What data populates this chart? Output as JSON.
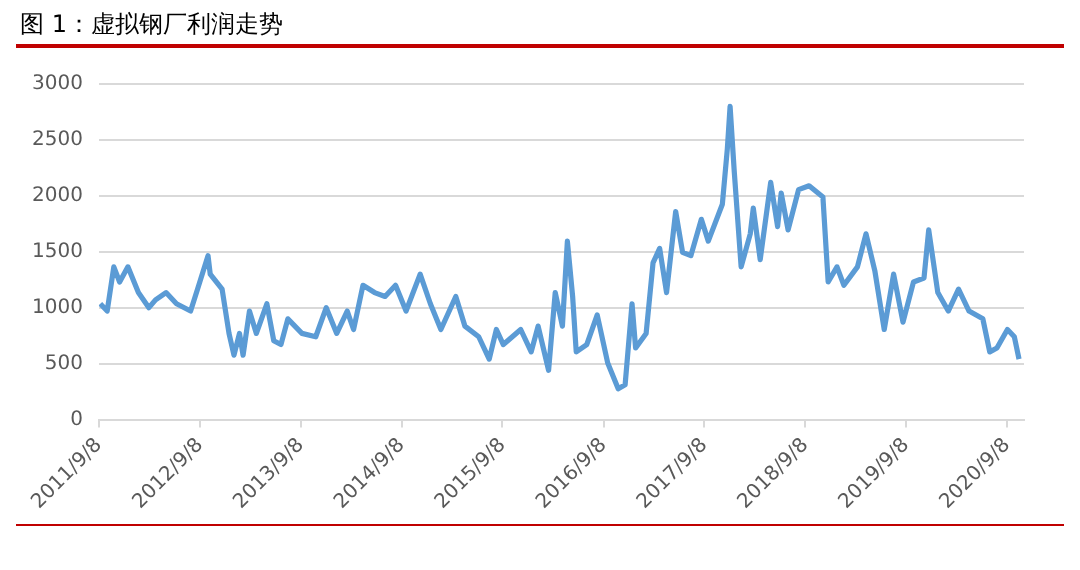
{
  "chart_data": {
    "type": "line",
    "title": "图 1：虚拟钢厂利润走势",
    "x": [
      "2011-09-13",
      "2011-10-08",
      "2011-11-01",
      "2011-11-22",
      "2011-12-22",
      "2012-01-29",
      "2012-03-07",
      "2012-03-31",
      "2012-05-08",
      "2012-06-15",
      "2012-08-05",
      "2012-08-30",
      "2012-10-07",
      "2012-10-15",
      "2012-11-27",
      "2012-12-22",
      "2013-01-09",
      "2013-01-29",
      "2013-02-11",
      "2013-03-06",
      "2013-03-31",
      "2013-05-08",
      "2013-06-02",
      "2013-06-28",
      "2013-07-23",
      "2013-09-12",
      "2013-11-01",
      "2013-12-09",
      "2014-01-16",
      "2014-02-23",
      "2014-03-18",
      "2014-04-21",
      "2014-06-02",
      "2014-07-10",
      "2014-08-17",
      "2014-09-24",
      "2014-11-14",
      "2014-12-21",
      "2015-01-28",
      "2015-03-23",
      "2015-04-25",
      "2015-06-14",
      "2015-07-22",
      "2015-08-17",
      "2015-09-11",
      "2015-11-13",
      "2015-12-21",
      "2016-01-15",
      "2016-02-22",
      "2016-03-17",
      "2016-04-12",
      "2016-04-30",
      "2016-05-19",
      "2016-06-01",
      "2016-07-09",
      "2016-08-16",
      "2016-09-23",
      "2016-10-31",
      "2016-11-25",
      "2016-12-20",
      "2017-01-02",
      "2017-02-09",
      "2017-03-06",
      "2017-03-30",
      "2017-04-24",
      "2017-05-27",
      "2017-06-21",
      "2017-07-21",
      "2017-08-28",
      "2017-09-22",
      "2017-11-12",
      "2017-11-30",
      "2017-12-10",
      "2017-12-25",
      "2018-01-19",
      "2018-02-21",
      "2018-03-04",
      "2018-03-29",
      "2018-05-06",
      "2018-05-31",
      "2018-06-13",
      "2018-07-08",
      "2018-08-15",
      "2018-09-22",
      "2018-11-11",
      "2018-11-30",
      "2019-01-01",
      "2019-01-26",
      "2019-03-16",
      "2019-04-16",
      "2019-05-18",
      "2019-06-21",
      "2019-07-25",
      "2019-08-28",
      "2019-10-05",
      "2019-11-12",
      "2019-11-29",
      "2020-01-01",
      "2020-02-08",
      "2020-03-16",
      "2020-04-23",
      "2020-06-12",
      "2020-07-07",
      "2020-08-02",
      "2020-09-09",
      "2020-10-04",
      "2020-10-21"
    ],
    "series": [
      {
        "color": "#5b9bd5",
        "values": [
          1035,
          970,
          1365,
          1230,
          1365,
          1135,
          1000,
          1070,
          1135,
          1035,
          970,
          1165,
          1465,
          1300,
          1165,
          770,
          575,
          770,
          575,
          970,
          770,
          1035,
          705,
          670,
          900,
          770,
          740,
          1000,
          770,
          970,
          805,
          1200,
          1135,
          1100,
          1200,
          970,
          1300,
          1035,
          805,
          1100,
          835,
          740,
          540,
          805,
          670,
          805,
          605,
          835,
          440,
          1135,
          835,
          1595,
          1100,
          605,
          670,
          935,
          505,
          275,
          310,
          1035,
          640,
          770,
          1400,
          1530,
          1135,
          1860,
          1495,
          1465,
          1790,
          1595,
          1925,
          2420,
          2800,
          2220,
          1365,
          1660,
          1890,
          1430,
          2120,
          1725,
          2025,
          1695,
          2055,
          2090,
          1990,
          1230,
          1365,
          1200,
          1365,
          1660,
          1330,
          805,
          1300,
          870,
          1230,
          1265,
          1695,
          1135,
          970,
          1165,
          970,
          900,
          605,
          640,
          805,
          740,
          540
        ]
      }
    ],
    "xlim": [
      "2011-09-08",
      "2020-11-08"
    ],
    "xticks": [
      {
        "value": "2011-09-08",
        "label": "2011/9/8"
      },
      {
        "value": "2012-09-08",
        "label": "2012/9/8"
      },
      {
        "value": "2013-09-08",
        "label": "2013/9/8"
      },
      {
        "value": "2014-09-08",
        "label": "2014/9/8"
      },
      {
        "value": "2015-09-08",
        "label": "2015/9/8"
      },
      {
        "value": "2016-09-08",
        "label": "2016/9/8"
      },
      {
        "value": "2017-09-08",
        "label": "2017/9/8"
      },
      {
        "value": "2018-09-08",
        "label": "2018/9/8"
      },
      {
        "value": "2019-09-08",
        "label": "2019/9/8"
      },
      {
        "value": "2020-09-08",
        "label": "2020/9/8"
      }
    ],
    "ylim": [
      0,
      3000
    ],
    "yticks": [
      0,
      500,
      1000,
      1500,
      2000,
      2500,
      3000
    ],
    "grid": "y",
    "legend": false,
    "marker": "none",
    "line_style": "solid"
  }
}
